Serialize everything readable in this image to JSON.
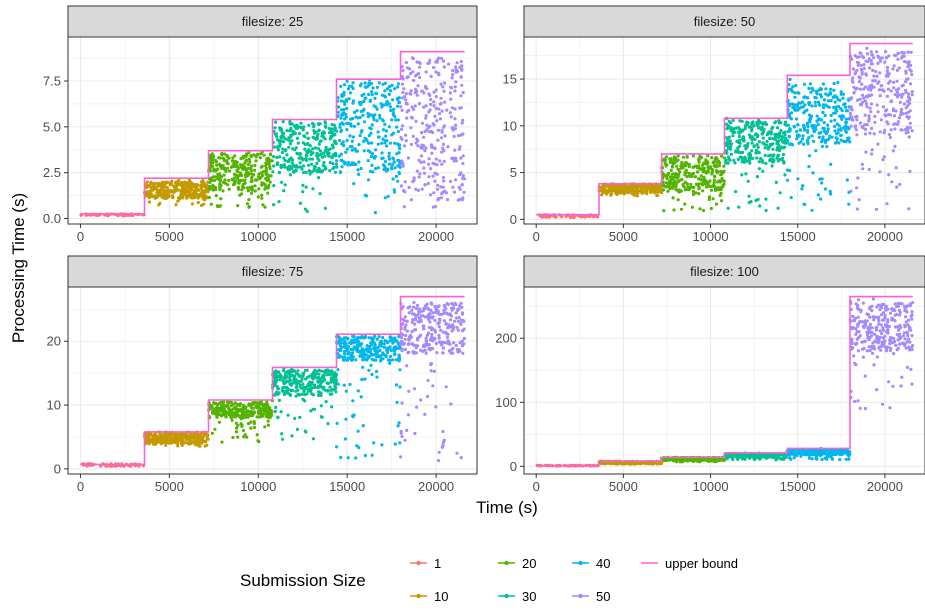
{
  "chart_data": {
    "type": "scatter",
    "xlabel": "Time (s)",
    "ylabel": "Processing Time (s)",
    "x_ticks": [
      0,
      5000,
      10000,
      15000,
      20000
    ],
    "xlim": [
      -700,
      22300
    ],
    "grid": true,
    "legend": {
      "title": "Submission Size",
      "placement": "bottom",
      "entries": [
        "1",
        "10",
        "20",
        "30",
        "40",
        "50",
        "upper bound"
      ]
    },
    "series_colors": {
      "1": "#F8766D",
      "10": "#C49A00",
      "20": "#53B400",
      "30": "#00C094",
      "40": "#00B6EB",
      "50": "#A58AFF",
      "upper bound": "#FB61D7"
    },
    "phases": [
      {
        "series": "1",
        "x_range": [
          0,
          3600
        ]
      },
      {
        "series": "10",
        "x_range": [
          3600,
          7200
        ]
      },
      {
        "series": "20",
        "x_range": [
          7200,
          10800
        ]
      },
      {
        "series": "30",
        "x_range": [
          10800,
          14400
        ]
      },
      {
        "series": "40",
        "x_range": [
          14400,
          18000
        ]
      },
      {
        "series": "50",
        "x_range": [
          18000,
          21600
        ]
      }
    ],
    "panels": [
      {
        "strip": "filesize: 25",
        "ylim": [
          -0.3,
          9.9
        ],
        "y_ticks": [
          0.0,
          2.5,
          5.0,
          7.5
        ],
        "y_tick_labels": [
          "0.0",
          "2.5",
          "5.0",
          "7.5"
        ],
        "upper_bound": [
          0.25,
          2.2,
          3.7,
          5.4,
          7.6,
          9.1
        ],
        "bands": [
          {
            "main": [
              0.15,
              0.25
            ],
            "sparse": [
              0.15,
              0.25
            ]
          },
          {
            "main": [
              1.1,
              2.0
            ],
            "sparse": [
              0.7,
              2.2
            ]
          },
          {
            "main": [
              1.5,
              3.6
            ],
            "sparse": [
              0.6,
              3.7
            ]
          },
          {
            "main": [
              2.5,
              5.3
            ],
            "sparse": [
              0.3,
              5.4
            ]
          },
          {
            "main": [
              2.5,
              7.4
            ],
            "sparse": [
              0.3,
              7.6
            ]
          },
          {
            "main": [
              1.0,
              8.8
            ],
            "sparse": [
              0.5,
              9.0
            ]
          }
        ]
      },
      {
        "strip": "filesize: 50",
        "ylim": [
          -0.5,
          19.5
        ],
        "y_ticks": [
          0,
          5,
          10,
          15
        ],
        "y_tick_labels": [
          "0",
          "5",
          "10",
          "15"
        ],
        "upper_bound": [
          0.5,
          3.8,
          7.0,
          10.8,
          15.4,
          18.8
        ],
        "bands": [
          {
            "main": [
              0.2,
              0.5
            ],
            "sparse": [
              0.2,
              0.5
            ]
          },
          {
            "main": [
              2.8,
              3.8
            ],
            "sparse": [
              2.5,
              3.8
            ]
          },
          {
            "main": [
              3.0,
              6.8
            ],
            "sparse": [
              0.9,
              7.0
            ]
          },
          {
            "main": [
              6.0,
              10.6
            ],
            "sparse": [
              0.9,
              10.8
            ]
          },
          {
            "main": [
              8.0,
              14.0
            ],
            "sparse": [
              0.9,
              15.0
            ]
          },
          {
            "main": [
              9.0,
              18.0
            ],
            "sparse": [
              0.9,
              18.5
            ]
          }
        ]
      },
      {
        "strip": "filesize: 75",
        "ylim": [
          -0.8,
          28.5
        ],
        "y_ticks": [
          0,
          10,
          20
        ],
        "y_tick_labels": [
          "0",
          "10",
          "20"
        ],
        "upper_bound": [
          0.7,
          5.8,
          10.8,
          15.9,
          21.1,
          27.0
        ],
        "bands": [
          {
            "main": [
              0.4,
              0.8
            ],
            "sparse": [
              0.4,
              0.8
            ]
          },
          {
            "main": [
              4.0,
              5.8
            ],
            "sparse": [
              3.5,
              5.8
            ]
          },
          {
            "main": [
              8.0,
              10.5
            ],
            "sparse": [
              4.0,
              10.8
            ]
          },
          {
            "main": [
              11.5,
              15.5
            ],
            "sparse": [
              4.0,
              15.8
            ]
          },
          {
            "main": [
              17.0,
              20.8
            ],
            "sparse": [
              1.2,
              21.0
            ]
          },
          {
            "main": [
              18.0,
              26.0
            ],
            "sparse": [
              1.2,
              26.5
            ]
          }
        ]
      },
      {
        "strip": "filesize: 100",
        "ylim": [
          -12,
          280
        ],
        "y_ticks": [
          0,
          100,
          200
        ],
        "y_tick_labels": [
          "0",
          "100",
          "200"
        ],
        "upper_bound": [
          1,
          8,
          14,
          21,
          28,
          265
        ],
        "bands": [
          {
            "main": [
              0.5,
              1.5
            ],
            "sparse": [
              0.5,
              1.5
            ]
          },
          {
            "main": [
              4,
              8
            ],
            "sparse": [
              3,
              8
            ]
          },
          {
            "main": [
              9,
              14
            ],
            "sparse": [
              7,
              14
            ]
          },
          {
            "main": [
              14,
              20
            ],
            "sparse": [
              10,
              21
            ]
          },
          {
            "main": [
              18,
              27
            ],
            "sparse": [
              10,
              28
            ]
          },
          {
            "main": [
              180,
              255
            ],
            "sparse": [
              90,
              262
            ]
          }
        ]
      }
    ]
  }
}
